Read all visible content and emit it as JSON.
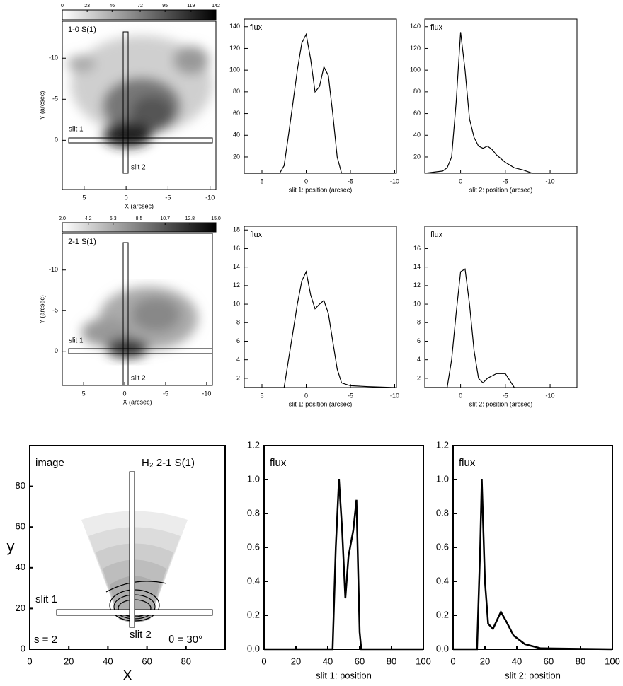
{
  "chart_data": [
    {
      "type": "image",
      "title": "1-0 S(1)",
      "xlabel": "X (arcsec)",
      "ylabel": "Y (arcsec)",
      "xlim": [
        7.6,
        -10.7
      ],
      "ylim": [
        6,
        -14.5
      ],
      "xticks": [
        5,
        0,
        -5,
        -10
      ],
      "yticks": [
        -10,
        -5,
        0
      ],
      "colorbar_ticks": [
        0,
        23,
        46,
        72,
        95,
        119,
        142
      ],
      "annotations": [
        "slit 1",
        "slit 2"
      ]
    },
    {
      "type": "line",
      "title": "flux",
      "xlabel": "slit 1: position (arcsec)",
      "xlim": [
        7,
        -10.2
      ],
      "ylim": [
        5,
        147
      ],
      "xticks": [
        5,
        0,
        -5,
        -10
      ],
      "yticks": [
        20,
        40,
        60,
        80,
        100,
        120,
        140
      ],
      "x": [
        7,
        3,
        2.5,
        2,
        1.5,
        1,
        0.5,
        0,
        -0.5,
        -1,
        -1.5,
        -2,
        -2.5,
        -3,
        -3.5,
        -4,
        -10
      ],
      "values": [
        5,
        5,
        12,
        40,
        70,
        100,
        125,
        133,
        110,
        80,
        85,
        103,
        95,
        60,
        20,
        5,
        5
      ],
      "color": "#000000"
    },
    {
      "type": "line",
      "title": "flux",
      "xlabel": "slit 2: position (arcsec)",
      "xlim": [
        4,
        -13
      ],
      "ylim": [
        5,
        147
      ],
      "xticks": [
        0,
        -5,
        -10
      ],
      "yticks": [
        20,
        40,
        60,
        80,
        100,
        120,
        140
      ],
      "x": [
        4,
        2,
        1.5,
        1,
        0.5,
        0,
        -0.5,
        -1,
        -1.5,
        -2,
        -2.5,
        -3,
        -3.5,
        -4,
        -5,
        -6,
        -7,
        -8,
        -13
      ],
      "values": [
        5,
        7,
        10,
        20,
        70,
        135,
        100,
        55,
        38,
        30,
        28,
        30,
        27,
        22,
        15,
        10,
        8,
        5,
        5
      ],
      "color": "#000000"
    },
    {
      "type": "image",
      "title": "2-1 S(1)",
      "xlabel": "X (arcsec)",
      "ylabel": "Y (arcsec)",
      "xlim": [
        7.6,
        -10.7
      ],
      "ylim": [
        4.2,
        -14.5
      ],
      "xticks": [
        5,
        0,
        -5,
        -10
      ],
      "yticks": [
        -10,
        -5,
        0
      ],
      "colorbar_ticks": [
        {
          "value": 2,
          "label": "2.0"
        },
        4.2,
        6.3,
        8.5,
        10.7,
        12.8,
        {
          "value": 15,
          "label": "15.0"
        }
      ],
      "annotations": [
        "slit 1",
        "slit 2"
      ]
    },
    {
      "type": "line",
      "title": "flux",
      "xlabel": "slit 1: position (arcsec)",
      "xlim": [
        7,
        -10.2
      ],
      "ylim": [
        1,
        18.4
      ],
      "xticks": [
        5,
        0,
        -5,
        -10
      ],
      "yticks": [
        2,
        4,
        6,
        8,
        10,
        12,
        14,
        16,
        18
      ],
      "x": [
        7,
        2.5,
        2,
        1.5,
        1,
        0.5,
        0,
        -0.5,
        -1,
        -1.5,
        -2,
        -2.5,
        -3,
        -3.5,
        -4,
        -5,
        -7,
        -10
      ],
      "values": [
        1,
        1,
        4,
        7,
        10,
        12.5,
        13.5,
        11,
        9.5,
        10,
        10.4,
        9,
        6,
        3,
        1.5,
        1.2,
        1.1,
        1
      ],
      "color": "#000000"
    },
    {
      "type": "line",
      "title": "flux",
      "xlabel": "slit 2: position (arcsec)",
      "xlim": [
        4,
        -13
      ],
      "ylim": [
        1,
        18.4
      ],
      "xticks": [
        0,
        -5,
        -10
      ],
      "yticks": [
        2,
        4,
        6,
        8,
        10,
        12,
        14,
        16
      ],
      "x": [
        4,
        1.5,
        1,
        0.5,
        0,
        -0.5,
        -1,
        -1.5,
        -2,
        -2.5,
        -3,
        -4,
        -5,
        -6,
        -13
      ],
      "values": [
        1,
        1,
        4,
        9,
        13.5,
        13.8,
        10,
        5,
        2,
        1.5,
        2,
        2.5,
        2.5,
        1,
        1
      ],
      "color": "#000000"
    },
    {
      "type": "image",
      "title": "image",
      "xlabel": "X",
      "ylabel": "y",
      "xlim": [
        0,
        100
      ],
      "ylim": [
        0,
        100
      ],
      "xticks": [
        0,
        20,
        40,
        60,
        80
      ],
      "yticks": [
        0,
        20,
        40,
        60,
        80
      ],
      "annotations": [
        "H₂ 2-1 S(1)",
        "slit 1",
        "slit 2",
        "s = 2",
        "θ = 30°"
      ]
    },
    {
      "type": "line",
      "title": "flux",
      "xlabel": "slit 1: position",
      "xlim": [
        0,
        100
      ],
      "ylim": [
        0,
        1.2
      ],
      "xticks": [
        0,
        20,
        40,
        60,
        80,
        100
      ],
      "yticks": [
        {
          "value": 0,
          "label": "0.0"
        },
        0.2,
        0.4,
        0.6,
        0.8,
        {
          "value": 1,
          "label": "1.0"
        },
        1.2
      ],
      "x": [
        0,
        43,
        45,
        47,
        49,
        51,
        53,
        56,
        58,
        60,
        61,
        100
      ],
      "values": [
        0,
        0,
        0.6,
        1.0,
        0.7,
        0.3,
        0.55,
        0.7,
        0.88,
        0.1,
        0,
        0
      ],
      "color": "#000000"
    },
    {
      "type": "line",
      "title": "flux",
      "xlabel": "slit 2: position",
      "xlim": [
        0,
        100
      ],
      "ylim": [
        0,
        1.2
      ],
      "xticks": [
        0,
        20,
        40,
        60,
        80,
        100
      ],
      "yticks": [
        {
          "value": 0,
          "label": "0.0"
        },
        0.2,
        0.4,
        0.6,
        0.8,
        {
          "value": 1,
          "label": "1.0"
        },
        1.2
      ],
      "x": [
        0,
        15,
        17,
        18,
        20,
        22,
        25,
        28,
        30,
        33,
        38,
        45,
        55,
        100
      ],
      "values": [
        0,
        0,
        0.6,
        1.0,
        0.4,
        0.15,
        0.12,
        0.18,
        0.22,
        0.17,
        0.08,
        0.03,
        0.005,
        0
      ],
      "color": "#000000"
    }
  ]
}
